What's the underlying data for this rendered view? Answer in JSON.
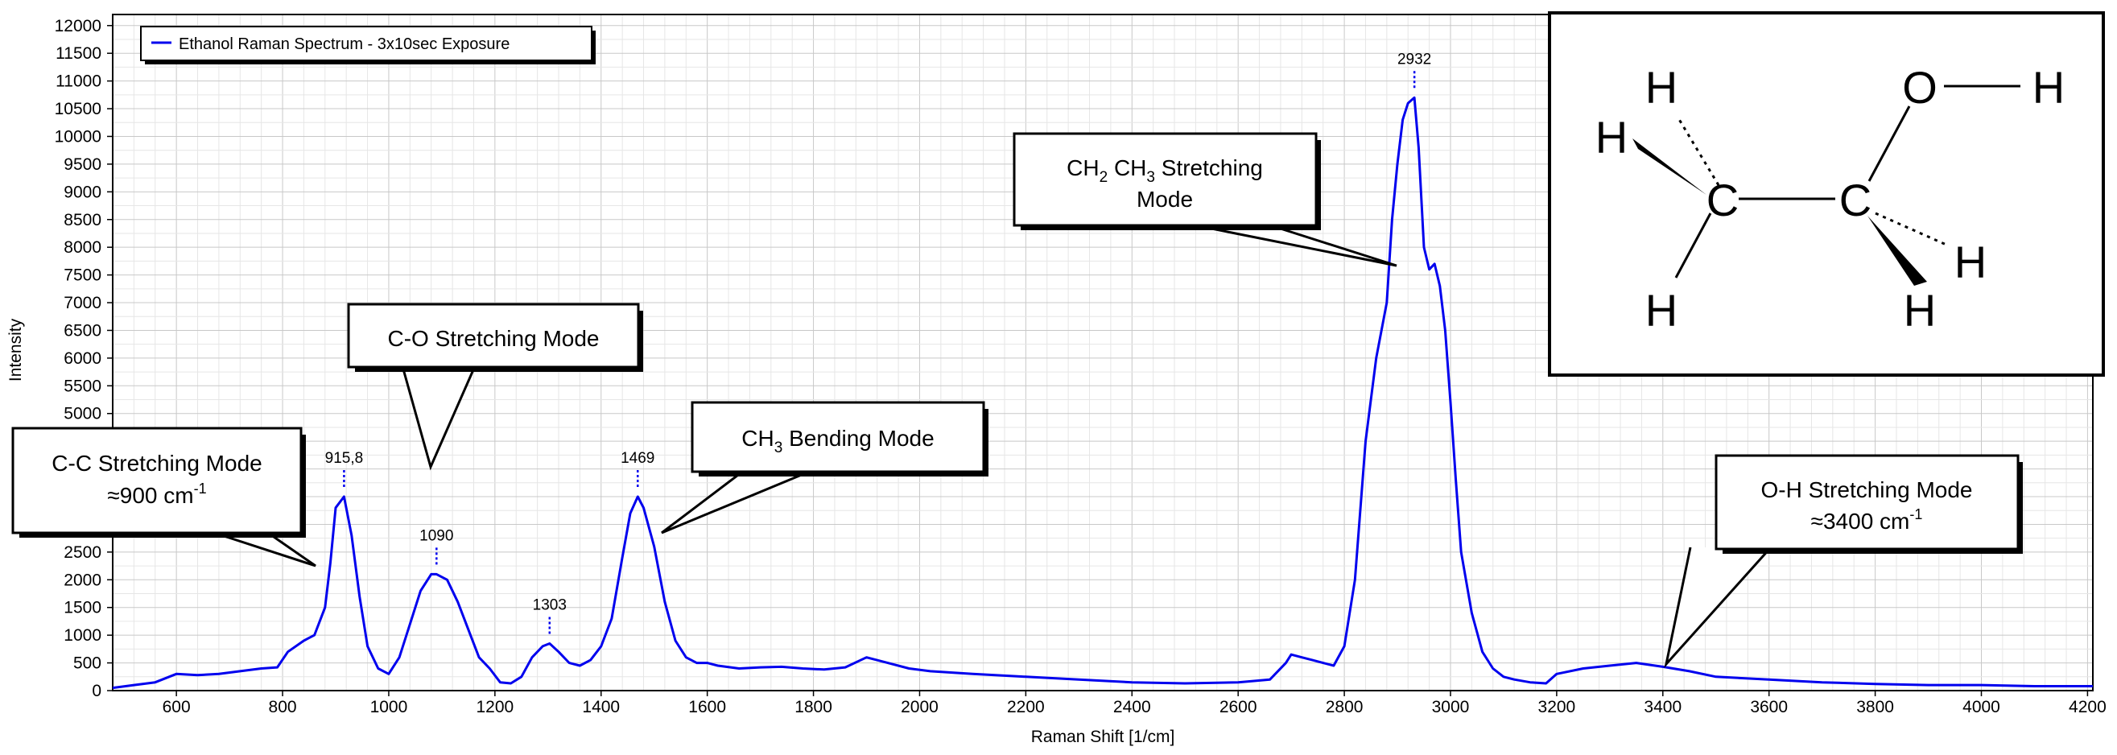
{
  "chart_data": {
    "type": "line",
    "title": "",
    "xlabel": "Raman Shift [1/cm]",
    "ylabel": "Intensity",
    "xlim": [
      480,
      4210
    ],
    "ylim": [
      0,
      12200
    ],
    "x_ticks": [
      600,
      800,
      1000,
      1200,
      1400,
      1600,
      1800,
      2000,
      2200,
      2400,
      2600,
      2800,
      3000,
      3200,
      3400,
      3600,
      3800,
      4000,
      4200
    ],
    "y_ticks": [
      0,
      500,
      1000,
      1500,
      2000,
      2500,
      5000,
      5500,
      6000,
      6500,
      7000,
      7500,
      8000,
      8500,
      9000,
      9500,
      10000,
      10500,
      11000,
      11500,
      12000
    ],
    "grid": true,
    "legend_position": "top-left",
    "series": [
      {
        "name": "Ethanol Raman Spectrum - 3x10sec Exposure",
        "color": "#0000ee",
        "x": [
          480,
          520,
          560,
          600,
          640,
          680,
          720,
          760,
          790,
          810,
          840,
          860,
          880,
          890,
          900,
          915.8,
          930,
          945,
          960,
          980,
          1000,
          1020,
          1040,
          1060,
          1080,
          1090,
          1110,
          1130,
          1150,
          1170,
          1190,
          1210,
          1230,
          1250,
          1270,
          1290,
          1303,
          1320,
          1340,
          1360,
          1380,
          1400,
          1420,
          1440,
          1455,
          1469,
          1480,
          1500,
          1520,
          1540,
          1560,
          1580,
          1600,
          1620,
          1660,
          1700,
          1740,
          1780,
          1820,
          1860,
          1900,
          1940,
          1980,
          2020,
          2100,
          2200,
          2300,
          2400,
          2500,
          2600,
          2660,
          2690,
          2700,
          2720,
          2740,
          2760,
          2780,
          2800,
          2820,
          2840,
          2860,
          2880,
          2890,
          2900,
          2910,
          2920,
          2932,
          2940,
          2950,
          2960,
          2970,
          2980,
          2990,
          3000,
          3010,
          3020,
          3040,
          3060,
          3080,
          3100,
          3120,
          3150,
          3180,
          3200,
          3250,
          3300,
          3350,
          3400,
          3450,
          3500,
          3600,
          3700,
          3800,
          3900,
          4000,
          4100,
          4210
        ],
        "values": [
          50,
          100,
          150,
          300,
          280,
          300,
          350,
          400,
          420,
          700,
          900,
          1000,
          1500,
          2300,
          3300,
          3500,
          2800,
          1700,
          800,
          400,
          300,
          600,
          1200,
          1800,
          2100,
          2100,
          2000,
          1600,
          1100,
          600,
          400,
          150,
          130,
          250,
          600,
          800,
          850,
          700,
          500,
          450,
          550,
          800,
          1300,
          2400,
          3200,
          3500,
          3300,
          2600,
          1600,
          900,
          600,
          500,
          500,
          450,
          400,
          420,
          430,
          400,
          380,
          420,
          600,
          500,
          400,
          350,
          300,
          250,
          200,
          150,
          130,
          150,
          200,
          500,
          650,
          600,
          550,
          500,
          450,
          800,
          2000,
          4500,
          6000,
          7000,
          8500,
          9500,
          10300,
          10600,
          10700,
          9800,
          8000,
          7600,
          7700,
          7300,
          6500,
          5200,
          3800,
          2500,
          1400,
          700,
          400,
          250,
          200,
          150,
          130,
          300,
          400,
          450,
          500,
          430,
          350,
          250,
          200,
          150,
          120,
          100,
          100,
          80,
          80
        ]
      }
    ],
    "peak_labels": [
      {
        "x": 915.8,
        "y": 3500,
        "text": "915,8"
      },
      {
        "x": 1090,
        "y": 2100,
        "text": "1090"
      },
      {
        "x": 1303,
        "y": 850,
        "text": "1303"
      },
      {
        "x": 1469,
        "y": 3500,
        "text": "1469"
      },
      {
        "x": 2932,
        "y": 10700,
        "text": "2932"
      }
    ],
    "annotations": [
      {
        "id": "cc",
        "line1": "C-C Stretching Mode",
        "line2_pre": "≈900 cm",
        "line2_sup": "-1"
      },
      {
        "id": "co",
        "line1": "C-O Stretching Mode"
      },
      {
        "id": "ch3",
        "line1_pre": "CH",
        "line1_sub": "3",
        "line1_post": " Bending Mode"
      },
      {
        "id": "ch2ch3",
        "line1_a": "CH",
        "line1_sub_a": "2",
        "line1_b": " CH",
        "line1_sub_b": "3",
        "line1_post": " Stretching",
        "line2": "Mode"
      },
      {
        "id": "oh",
        "line1": "O-H Stretching Mode",
        "line2_pre": "≈3400 cm",
        "line2_sup": "-1"
      }
    ],
    "molecule": {
      "name": "ethanol",
      "atoms": [
        "H",
        "H",
        "C",
        "C",
        "O",
        "H",
        "H",
        "H",
        "H"
      ]
    }
  }
}
